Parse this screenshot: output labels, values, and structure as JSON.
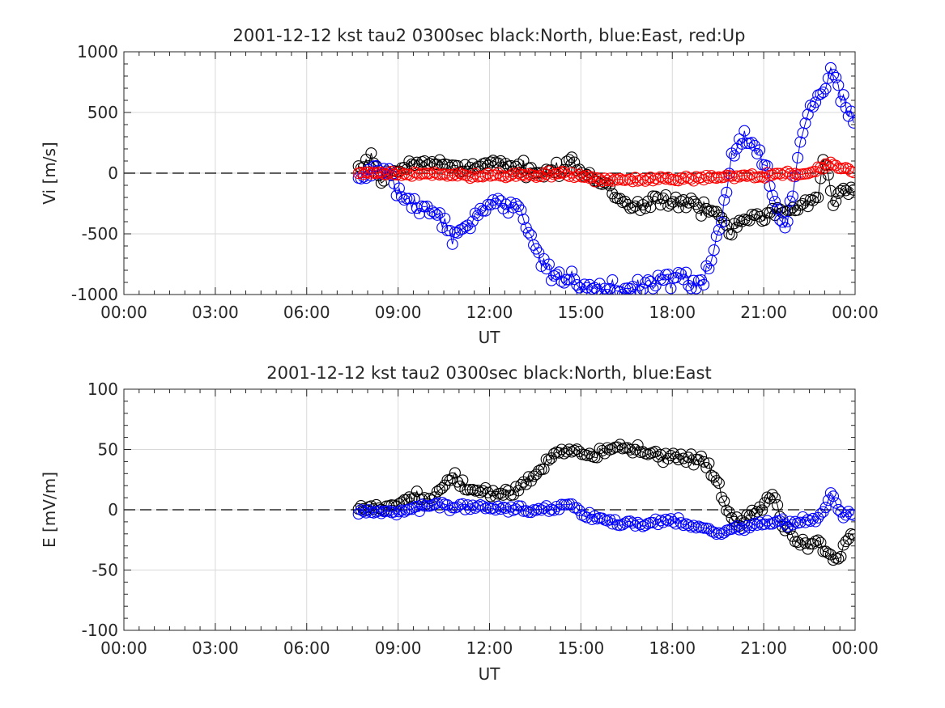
{
  "chart_data": [
    {
      "type": "line",
      "title": "2001-12-12 kst tau2 0300sec black:North, blue:East, red:Up",
      "xlabel": "UT",
      "ylabel": "Vi [m/s]",
      "xlim": [
        0,
        24
      ],
      "ylim": [
        -1000,
        1000
      ],
      "x_ticks": [
        "00:00",
        "03:00",
        "06:00",
        "09:00",
        "12:00",
        "15:00",
        "18:00",
        "21:00",
        "00:00"
      ],
      "y_ticks": [
        "-1000",
        "-500",
        "0",
        "500",
        "1000"
      ],
      "grid": true,
      "marker": "open-circle",
      "series": [
        {
          "name": "North",
          "color": "#000000",
          "anchors": [
            [
              7.7,
              10
            ],
            [
              8.1,
              120
            ],
            [
              8.4,
              -80
            ],
            [
              8.9,
              30
            ],
            [
              9.5,
              60
            ],
            [
              10.0,
              100
            ],
            [
              10.5,
              60
            ],
            [
              11.0,
              80
            ],
            [
              11.5,
              40
            ],
            [
              12.0,
              80
            ],
            [
              12.5,
              40
            ],
            [
              13.0,
              50
            ],
            [
              13.5,
              20
            ],
            [
              14.0,
              30
            ],
            [
              14.5,
              40
            ],
            [
              14.7,
              130
            ],
            [
              15.0,
              20
            ],
            [
              15.5,
              -80
            ],
            [
              16.0,
              -150
            ],
            [
              16.5,
              -250
            ],
            [
              17.0,
              -280
            ],
            [
              17.5,
              -200
            ],
            [
              18.0,
              -230
            ],
            [
              18.5,
              -260
            ],
            [
              19.0,
              -300
            ],
            [
              19.5,
              -330
            ],
            [
              19.9,
              -480
            ],
            [
              20.3,
              -380
            ],
            [
              20.8,
              -320
            ],
            [
              21.2,
              -330
            ],
            [
              21.6,
              -300
            ],
            [
              22.0,
              -280
            ],
            [
              22.4,
              -250
            ],
            [
              22.8,
              -180
            ],
            [
              23.0,
              120
            ],
            [
              23.3,
              -240
            ],
            [
              23.6,
              -140
            ],
            [
              24.0,
              -170
            ]
          ],
          "noise": 55
        },
        {
          "name": "East",
          "color": "#0000ff",
          "anchors": [
            [
              7.7,
              -50
            ],
            [
              8.2,
              20
            ],
            [
              8.7,
              20
            ],
            [
              9.2,
              -250
            ],
            [
              9.7,
              -280
            ],
            [
              10.3,
              -320
            ],
            [
              10.8,
              -550
            ],
            [
              11.2,
              -450
            ],
            [
              11.7,
              -350
            ],
            [
              12.0,
              -300
            ],
            [
              12.3,
              -250
            ],
            [
              12.8,
              -250
            ],
            [
              13.2,
              -420
            ],
            [
              13.6,
              -650
            ],
            [
              14.0,
              -800
            ],
            [
              14.5,
              -880
            ],
            [
              15.0,
              -930
            ],
            [
              15.5,
              -950
            ],
            [
              16.0,
              -960
            ],
            [
              16.5,
              -950
            ],
            [
              17.0,
              -920
            ],
            [
              17.5,
              -880
            ],
            [
              18.0,
              -850
            ],
            [
              18.5,
              -900
            ],
            [
              19.0,
              -920
            ],
            [
              19.3,
              -700
            ],
            [
              19.6,
              -400
            ],
            [
              19.8,
              -50
            ],
            [
              20.1,
              200
            ],
            [
              20.4,
              320
            ],
            [
              20.8,
              150
            ],
            [
              21.1,
              50
            ],
            [
              21.4,
              -300
            ],
            [
              21.7,
              -450
            ],
            [
              22.0,
              -100
            ],
            [
              22.3,
              400
            ],
            [
              22.7,
              600
            ],
            [
              23.0,
              700
            ],
            [
              23.3,
              850
            ],
            [
              23.6,
              600
            ],
            [
              24.0,
              350
            ]
          ],
          "noise": 70
        },
        {
          "name": "Up",
          "color": "#ff0000",
          "anchors": [
            [
              7.7,
              -10
            ],
            [
              9.0,
              0
            ],
            [
              11.0,
              -20
            ],
            [
              13.0,
              -15
            ],
            [
              14.5,
              0
            ],
            [
              15.5,
              -50
            ],
            [
              17.0,
              -60
            ],
            [
              18.5,
              -40
            ],
            [
              20.0,
              -30
            ],
            [
              21.5,
              -10
            ],
            [
              22.5,
              0
            ],
            [
              23.2,
              80
            ],
            [
              24.0,
              -10
            ]
          ],
          "noise": 22
        }
      ]
    },
    {
      "type": "line",
      "title": "2001-12-12 kst tau2 0300sec black:North, blue:East",
      "xlabel": "UT",
      "ylabel": "E [mV/m]",
      "xlim": [
        0,
        24
      ],
      "ylim": [
        -100,
        100
      ],
      "x_ticks": [
        "00:00",
        "03:00",
        "06:00",
        "09:00",
        "12:00",
        "15:00",
        "18:00",
        "21:00",
        "00:00"
      ],
      "y_ticks": [
        "-100",
        "-50",
        "0",
        "50",
        "100"
      ],
      "grid": true,
      "marker": "open-circle",
      "series": [
        {
          "name": "North",
          "color": "#000000",
          "anchors": [
            [
              7.7,
              2
            ],
            [
              8.5,
              0
            ],
            [
              9.0,
              5
            ],
            [
              9.5,
              12
            ],
            [
              10.0,
              8
            ],
            [
              10.5,
              20
            ],
            [
              10.9,
              28
            ],
            [
              11.3,
              18
            ],
            [
              11.8,
              15
            ],
            [
              12.3,
              12
            ],
            [
              12.8,
              15
            ],
            [
              13.3,
              25
            ],
            [
              13.8,
              38
            ],
            [
              14.3,
              48
            ],
            [
              14.8,
              50
            ],
            [
              15.3,
              45
            ],
            [
              15.8,
              48
            ],
            [
              16.3,
              52
            ],
            [
              16.8,
              48
            ],
            [
              17.3,
              46
            ],
            [
              17.8,
              44
            ],
            [
              18.3,
              45
            ],
            [
              18.8,
              40
            ],
            [
              19.2,
              38
            ],
            [
              19.5,
              20
            ],
            [
              19.8,
              0
            ],
            [
              20.2,
              -10
            ],
            [
              20.6,
              -5
            ],
            [
              21.0,
              5
            ],
            [
              21.3,
              15
            ],
            [
              21.6,
              -10
            ],
            [
              22.0,
              -25
            ],
            [
              22.4,
              -30
            ],
            [
              22.8,
              -25
            ],
            [
              23.1,
              -35
            ],
            [
              23.4,
              -45
            ],
            [
              23.7,
              -25
            ],
            [
              24.0,
              -15
            ]
          ],
          "noise": 4.5
        },
        {
          "name": "East",
          "color": "#0000ff",
          "anchors": [
            [
              7.7,
              0
            ],
            [
              8.3,
              -3
            ],
            [
              9.0,
              -1
            ],
            [
              10.0,
              3
            ],
            [
              11.0,
              3
            ],
            [
              12.0,
              2
            ],
            [
              13.0,
              1
            ],
            [
              14.0,
              0
            ],
            [
              14.7,
              5
            ],
            [
              15.2,
              -5
            ],
            [
              16.0,
              -10
            ],
            [
              17.0,
              -12
            ],
            [
              18.0,
              -8
            ],
            [
              19.0,
              -14
            ],
            [
              19.6,
              -20
            ],
            [
              20.2,
              -15
            ],
            [
              21.0,
              -12
            ],
            [
              21.5,
              -10
            ],
            [
              22.0,
              -12
            ],
            [
              22.5,
              -8
            ],
            [
              23.0,
              -3
            ],
            [
              23.2,
              15
            ],
            [
              23.5,
              -2
            ],
            [
              24.0,
              -5
            ]
          ],
          "noise": 3.2
        }
      ]
    }
  ]
}
